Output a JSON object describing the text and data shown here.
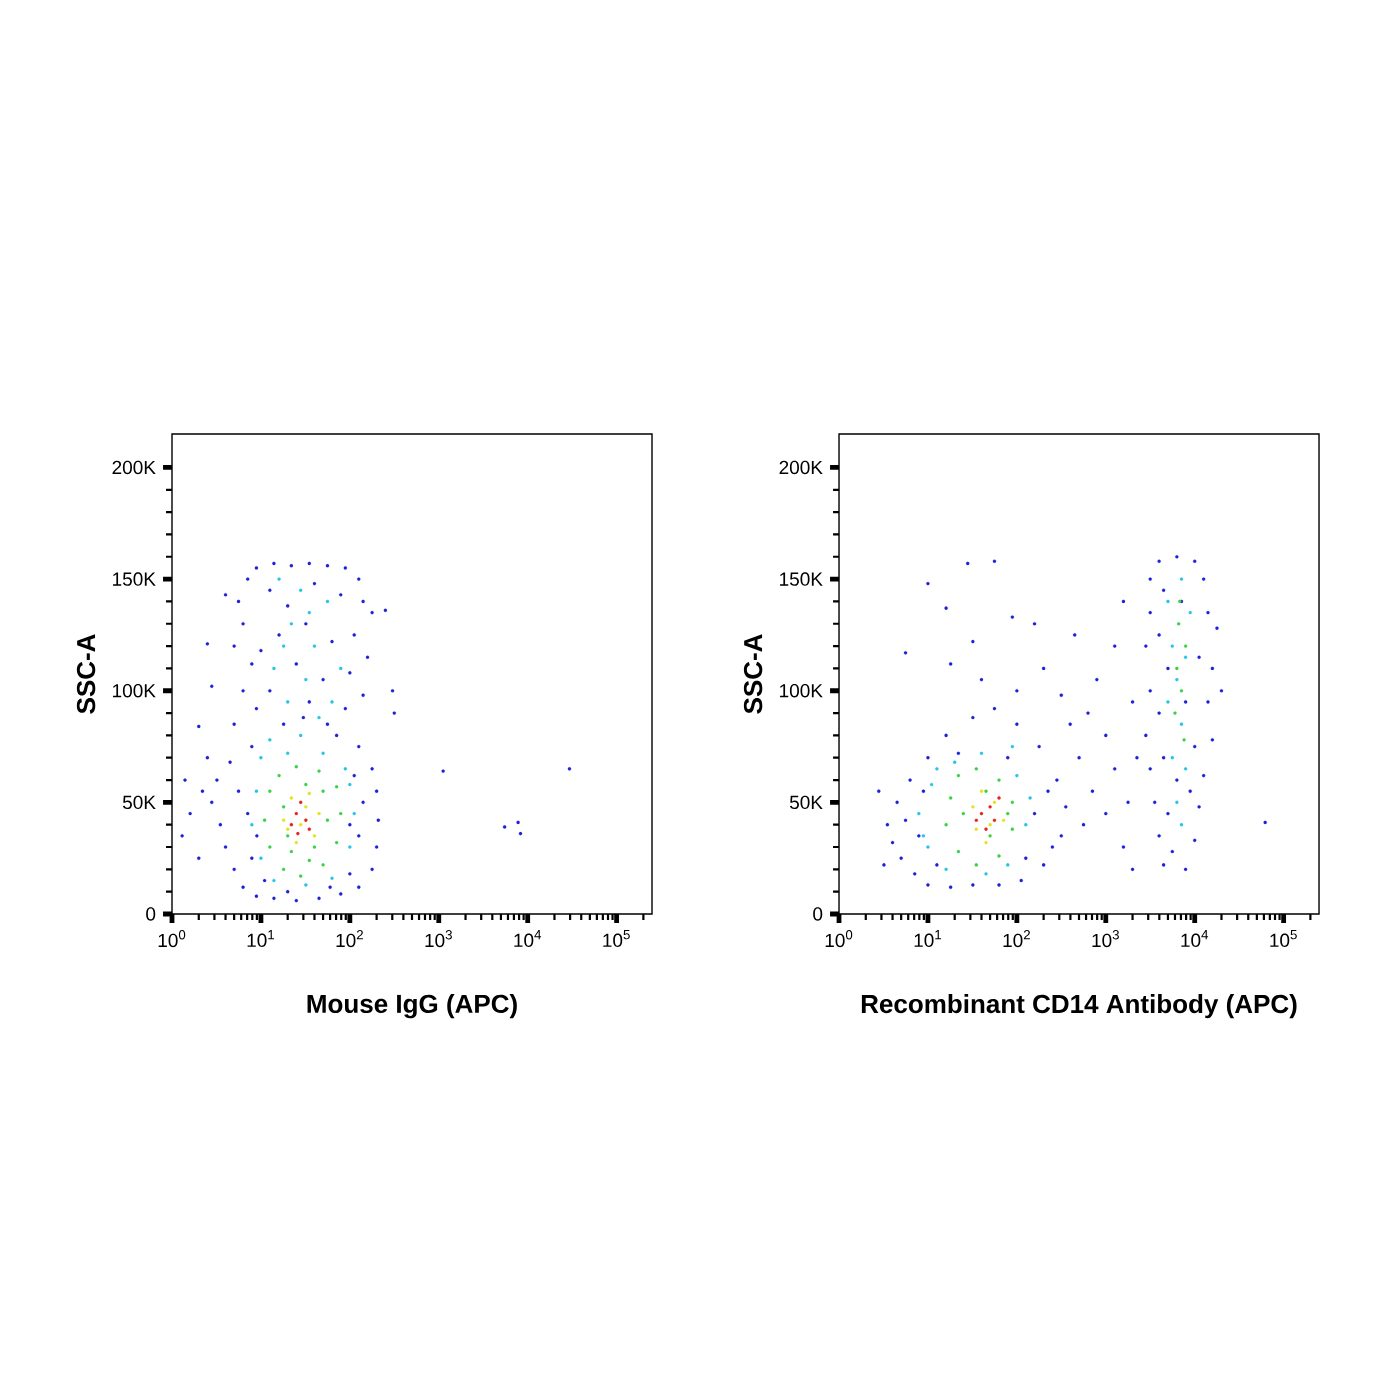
{
  "chart_data": [
    {
      "type": "scatter",
      "xlabel": "Mouse IgG (APC)",
      "ylabel": "SSC-A",
      "log": "x",
      "marker": "circle",
      "xlim": [
        1,
        250000
      ],
      "ylim": [
        0,
        215000
      ],
      "xticks": [
        {
          "value": 1,
          "label": "10$^{0}$"
        },
        {
          "value": 10,
          "label": "10$^{1}$"
        },
        {
          "value": 100,
          "label": "10$^{2}$"
        },
        {
          "value": 1000,
          "label": "10$^{3}$"
        },
        {
          "value": 10000,
          "label": "10$^{4}$"
        },
        {
          "value": 100000,
          "label": "10$^{5}$"
        }
      ],
      "yticks": [
        0,
        {
          "value": 50000,
          "label": "50K"
        },
        {
          "value": 100000,
          "label": "100K"
        },
        {
          "value": 150000,
          "label": "150K"
        },
        {
          "value": 200000,
          "label": "200K"
        }
      ],
      "series": [
        {
          "color": "#1f1fd6",
          "x": [
            7.1,
            8.9,
            14,
            22,
            35,
            56,
            89,
            126,
            141,
            178,
            5.6,
            4,
            6.3,
            5,
            7.9,
            6.3,
            8.9,
            5,
            2.8,
            2,
            2.5,
            12.6,
            20,
            40,
            79,
            16,
            32,
            63,
            112,
            10,
            25,
            50,
            100,
            158,
            12.6,
            35,
            89,
            141,
            18,
            71,
            126,
            7.9,
            251,
            302,
            316,
            3.2,
            2.8,
            3.5,
            4,
            5,
            6.3,
            8.9,
            14,
            25,
            45,
            79,
            126,
            178,
            200,
            209,
            200,
            178,
            4.5,
            5.6,
            7.1,
            7.9,
            11,
            100,
            126,
            141,
            112,
            2.2,
            1.6,
            1.3,
            2,
            1.4,
            2.5,
            1120,
            5500,
            7800,
            8300,
            29500,
            20,
            60,
            9,
            100,
            30,
            56
          ],
          "values": [
            150000,
            155000,
            157000,
            156000,
            157000,
            156000,
            155000,
            150000,
            140000,
            135000,
            140000,
            143000,
            130000,
            120000,
            112000,
            100000,
            92000,
            85000,
            102000,
            84000,
            121000,
            145000,
            138000,
            148000,
            143000,
            125000,
            130000,
            122000,
            125000,
            118000,
            112000,
            105000,
            108000,
            115000,
            100000,
            95000,
            92000,
            98000,
            85000,
            80000,
            75000,
            75000,
            136000,
            100000,
            90000,
            60000,
            50000,
            40000,
            30000,
            20000,
            12000,
            8000,
            7000,
            6000,
            7000,
            9000,
            12000,
            20000,
            30000,
            42000,
            55000,
            65000,
            68000,
            55000,
            45000,
            25000,
            15000,
            18000,
            35000,
            50000,
            62000,
            55000,
            45000,
            35000,
            25000,
            60000,
            70000,
            64000,
            39000,
            41000,
            36000,
            65000,
            10000,
            12000,
            35000,
            40000,
            88000,
            85000
          ]
        },
        {
          "color": "#27c4e6",
          "x": [
            16,
            28,
            22,
            40,
            14,
            32,
            56,
            20,
            45,
            79,
            28,
            12.6,
            63,
            18,
            35,
            10,
            89,
            8.9,
            7.9,
            10,
            14,
            32,
            63,
            100,
            112,
            100,
            20,
            50
          ],
          "values": [
            150000,
            145000,
            130000,
            120000,
            110000,
            105000,
            140000,
            95000,
            88000,
            110000,
            80000,
            78000,
            95000,
            120000,
            135000,
            70000,
            65000,
            55000,
            40000,
            25000,
            15000,
            13000,
            16000,
            30000,
            45000,
            58000,
            72000,
            72000
          ]
        },
        {
          "color": "#3cd04a",
          "x": [
            12.6,
            11,
            12.6,
            18,
            28,
            50,
            71,
            79,
            71,
            45,
            25,
            16,
            18,
            20,
            40,
            56,
            50,
            32,
            22,
            35
          ],
          "values": [
            55000,
            42000,
            30000,
            20000,
            17000,
            22000,
            32000,
            45000,
            57000,
            64000,
            66000,
            62000,
            48000,
            35000,
            30000,
            42000,
            55000,
            58000,
            28000,
            24000
          ]
        },
        {
          "color": "#e6e21e",
          "x": [
            18,
            22,
            35,
            45,
            40,
            25,
            20,
            32,
            28
          ],
          "values": [
            42000,
            52000,
            54000,
            45000,
            35000,
            32000,
            38000,
            48000,
            40000
          ]
        },
        {
          "color": "#e3261a",
          "x": [
            25,
            32,
            28,
            22,
            35,
            26
          ],
          "values": [
            45000,
            42000,
            50000,
            40000,
            38000,
            36000
          ]
        }
      ]
    },
    {
      "type": "scatter",
      "xlabel": "Recombinant CD14 Antibody (APC)",
      "ylabel": "SSC-A",
      "log": "x",
      "marker": "circle",
      "xlim": [
        1,
        250000
      ],
      "ylim": [
        0,
        215000
      ],
      "xticks": [
        {
          "value": 1,
          "label": "10$^{0}$"
        },
        {
          "value": 10,
          "label": "10$^{1}$"
        },
        {
          "value": 100,
          "label": "10$^{2}$"
        },
        {
          "value": 1000,
          "label": "10$^{3}$"
        },
        {
          "value": 10000,
          "label": "10$^{4}$"
        },
        {
          "value": 100000,
          "label": "10$^{5}$"
        }
      ],
      "yticks": [
        0,
        {
          "value": 50000,
          "label": "50K"
        },
        {
          "value": 100000,
          "label": "100K"
        },
        {
          "value": 150000,
          "label": "150K"
        },
        {
          "value": 200000,
          "label": "200K"
        }
      ],
      "series": [
        {
          "color": "#1f1fd6",
          "x": [
            3.5,
            4,
            4.5,
            5,
            6.3,
            7.1,
            10,
            10,
            16,
            18,
            32,
            32,
            56,
            63,
            100,
            112,
            178,
            200,
            282,
            316,
            355,
            5.6,
            7.9,
            8.9,
            158,
            224,
            251,
            12.6,
            126,
            22,
            79,
            3.2,
            2.8,
            5.6,
            10,
            16,
            28,
            56,
            32,
            89,
            158,
            18,
            40,
            100,
            200,
            316,
            447,
            631,
            794,
            1000,
            1260,
            1580,
            2000,
            501,
            708,
            1000,
            1260,
            1580,
            1780,
            562,
            2000,
            2240,
            398,
            3160,
            3980,
            6300,
            10000,
            12600,
            3160,
            14100,
            17800,
            2820,
            15800,
            3160,
            14100,
            2820,
            15800,
            3160,
            12600,
            3550,
            11200,
            3980,
            10000,
            4470,
            7900,
            5600,
            5000,
            8900,
            4470,
            6300,
            10000,
            3980,
            7900,
            5000,
            11200,
            3980,
            7100,
            4470,
            20000,
            62000
          ],
          "values": [
            40000,
            32000,
            50000,
            25000,
            60000,
            18000,
            70000,
            13000,
            80000,
            12000,
            88000,
            13000,
            92000,
            13000,
            85000,
            15000,
            75000,
            22000,
            60000,
            35000,
            48000,
            42000,
            35000,
            55000,
            45000,
            55000,
            30000,
            22000,
            25000,
            72000,
            70000,
            22000,
            55000,
            117000,
            148000,
            137000,
            157000,
            158000,
            122000,
            133000,
            130000,
            112000,
            105000,
            100000,
            110000,
            98000,
            125000,
            90000,
            105000,
            80000,
            120000,
            140000,
            95000,
            70000,
            55000,
            45000,
            65000,
            30000,
            50000,
            40000,
            20000,
            70000,
            85000,
            150000,
            158000,
            160000,
            158000,
            150000,
            135000,
            135000,
            128000,
            120000,
            110000,
            100000,
            95000,
            80000,
            78000,
            65000,
            62000,
            50000,
            48000,
            35000,
            33000,
            22000,
            20000,
            28000,
            45000,
            55000,
            70000,
            60000,
            75000,
            90000,
            95000,
            110000,
            115000,
            125000,
            140000,
            145000,
            100000,
            41000
          ]
        },
        {
          "color": "#27c4e6",
          "x": [
            7.9,
            10,
            11,
            16,
            20,
            40,
            45,
            79,
            100,
            126,
            141,
            89,
            12.6,
            8.9,
            5000,
            7100,
            5600,
            7900,
            5000,
            7100,
            5600,
            7900,
            6300,
            8900,
            6300,
            7100
          ],
          "values": [
            45000,
            30000,
            58000,
            20000,
            68000,
            72000,
            18000,
            22000,
            62000,
            40000,
            52000,
            75000,
            65000,
            35000,
            140000,
            150000,
            120000,
            115000,
            95000,
            85000,
            70000,
            65000,
            105000,
            135000,
            50000,
            40000
          ]
        },
        {
          "color": "#3cd04a",
          "x": [
            16,
            18,
            22,
            35,
            63,
            89,
            89,
            63,
            35,
            22,
            25,
            45,
            50,
            79,
            6600,
            7900,
            6300,
            7100,
            6000,
            7600,
            6800
          ],
          "values": [
            40000,
            52000,
            62000,
            65000,
            60000,
            50000,
            38000,
            26000,
            22000,
            28000,
            45000,
            55000,
            35000,
            45000,
            130000,
            120000,
            110000,
            100000,
            90000,
            78000,
            140000
          ]
        },
        {
          "color": "#e6e21e",
          "x": [
            32,
            40,
            56,
            50,
            35,
            71,
            45
          ],
          "values": [
            48000,
            55000,
            50000,
            40000,
            38000,
            42000,
            32000
          ]
        },
        {
          "color": "#e3261a",
          "x": [
            40,
            50,
            56,
            45,
            63,
            35
          ],
          "values": [
            45000,
            48000,
            42000,
            38000,
            52000,
            42000
          ]
        }
      ]
    }
  ]
}
